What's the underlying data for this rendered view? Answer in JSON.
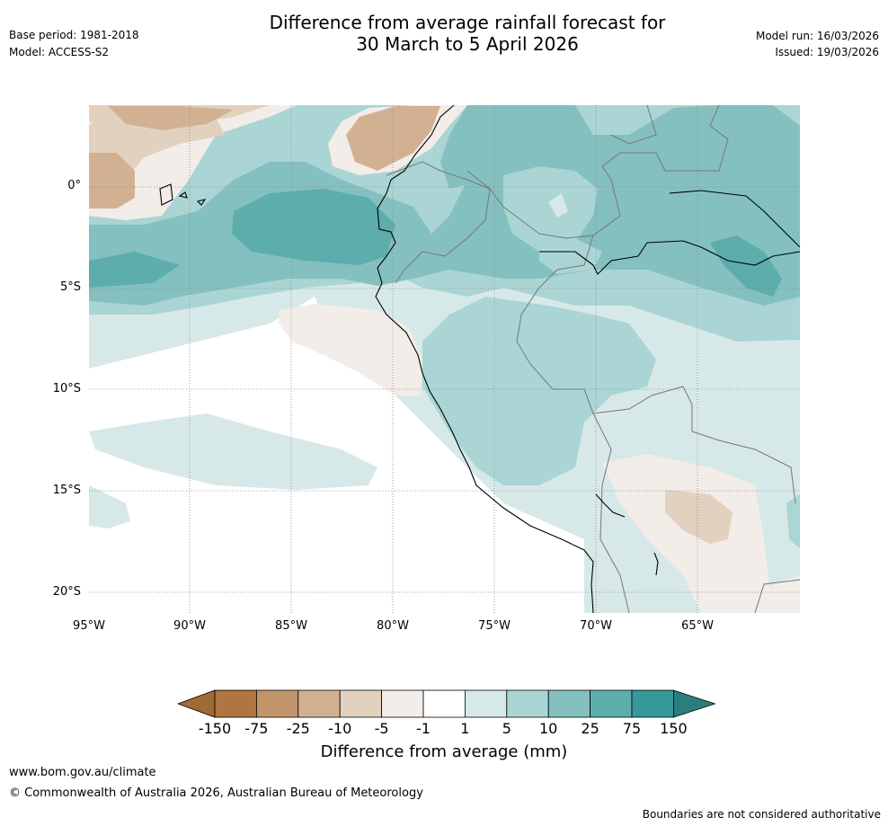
{
  "header": {
    "title_line1": "Difference from average rainfall forecast for",
    "title_line2": "30 March to 5 April 2026",
    "base_period": "Base period: 1981-2018",
    "model": "Model: ACCESS-S2",
    "model_run": "Model run: 16/03/2026",
    "issued": "Issued: 19/03/2026"
  },
  "map": {
    "lat_labels": [
      "0°",
      "5°S",
      "10°S",
      "15°S",
      "20°S"
    ],
    "lon_labels": [
      "95°W",
      "90°W",
      "85°W",
      "80°W",
      "75°W",
      "70°W",
      "65°W"
    ]
  },
  "colorbar": {
    "title": "Difference from average (mm)",
    "ticks": [
      "-150",
      "-75",
      "-25",
      "-10",
      "-5",
      "-1",
      "1",
      "5",
      "10",
      "25",
      "75",
      "150"
    ],
    "colors": [
      "#a06a34",
      "#b07540",
      "#c1946a",
      "#d2b193",
      "#e2d1bf",
      "#f2ede8",
      "#ffffff",
      "#d6e9e8",
      "#aad5d4",
      "#84c0bf",
      "#5cadac",
      "#37999a",
      "#2b7e7f"
    ]
  },
  "footer": {
    "url": "www.bom.gov.au/climate",
    "copyright": "© Commonwealth of Australia 2026, Australian Bureau of Meteorology",
    "disclaimer": "Boundaries are not considered authoritative"
  }
}
